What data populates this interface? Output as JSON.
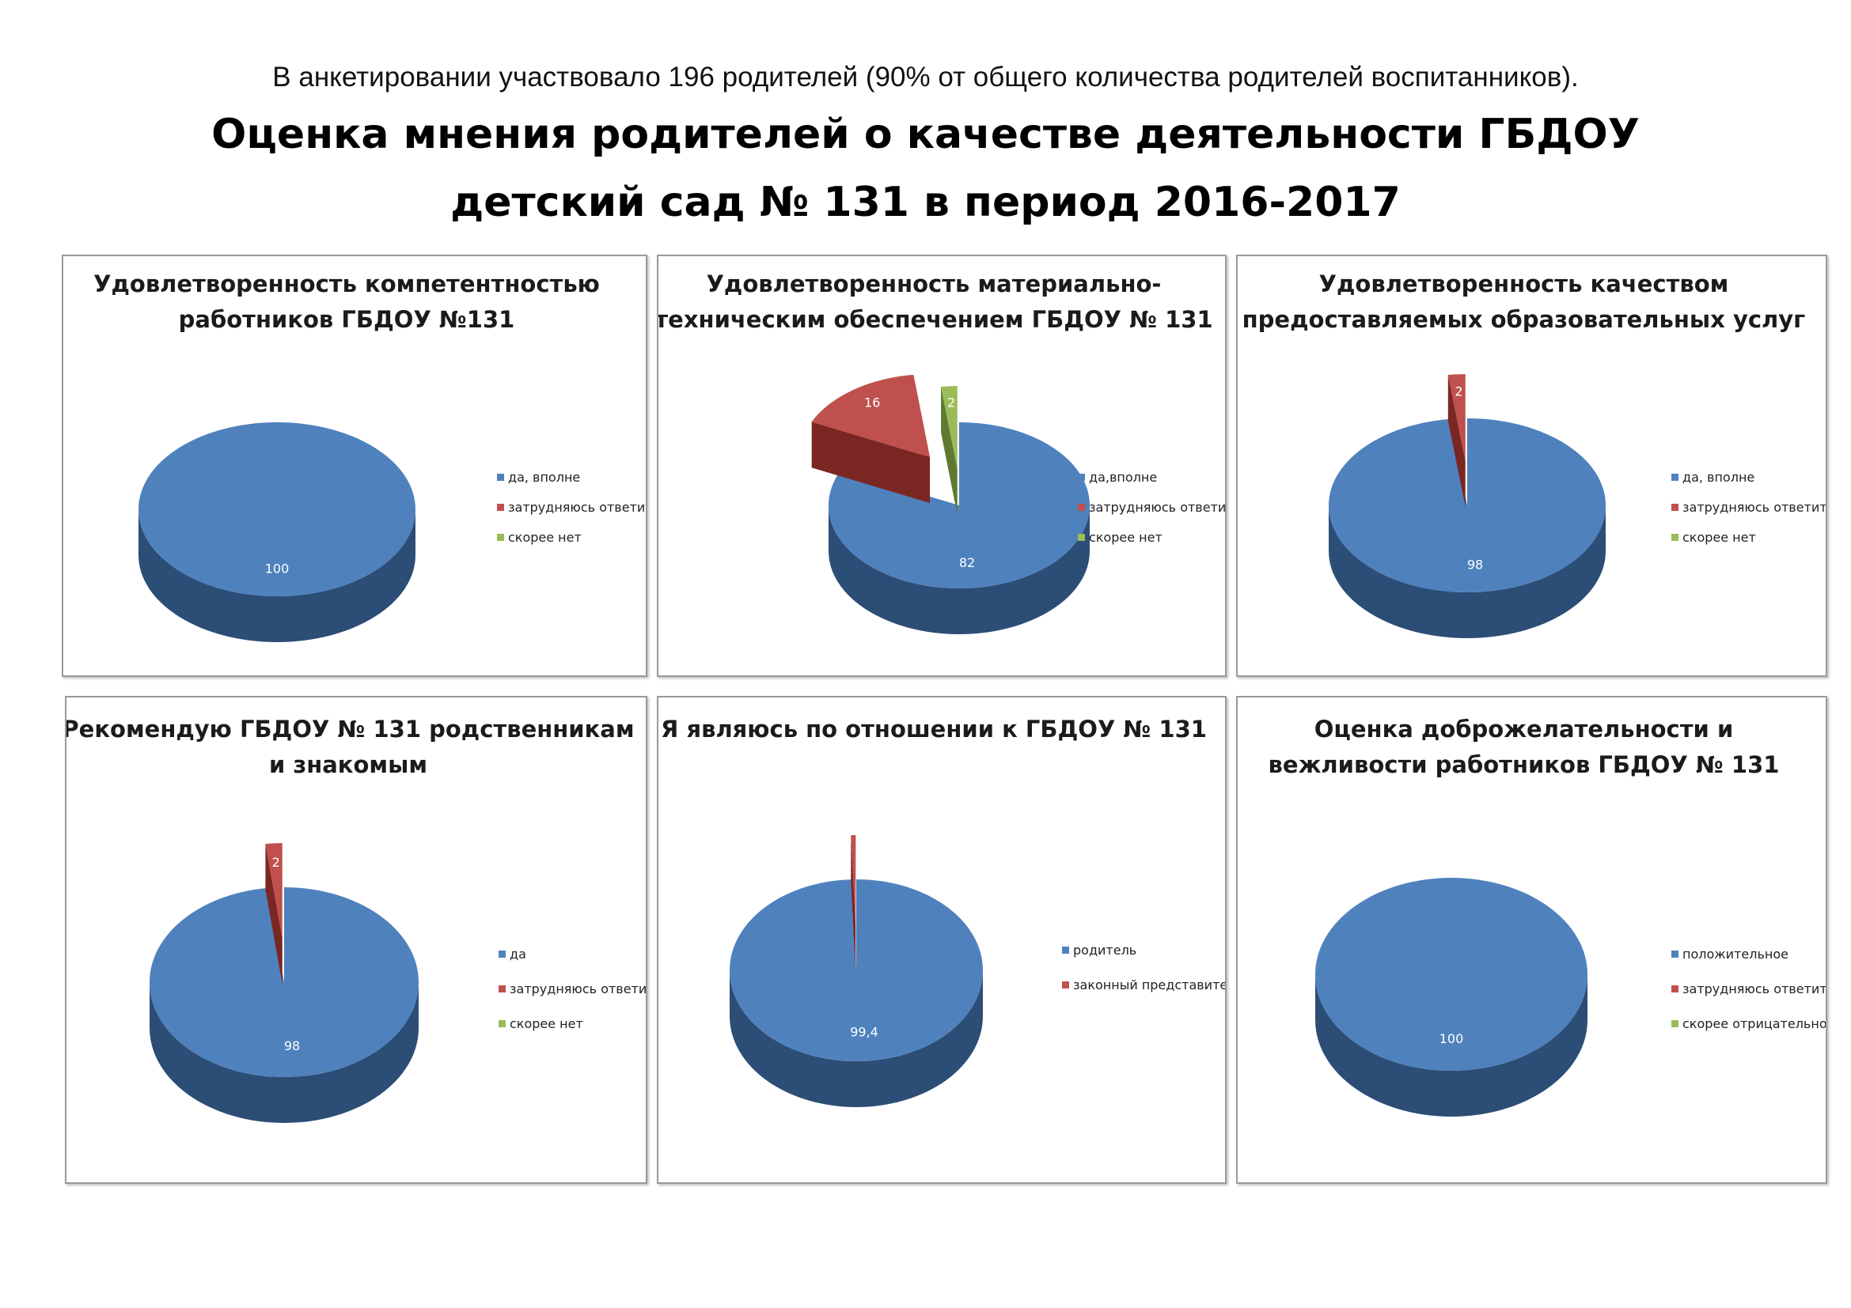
{
  "intro": "В анкетировании участвовало 196 родителей (90% от общего количества родителей воспитанников).",
  "title_line1": "Оценка мнения родителей о качестве деятельности ГБДОУ",
  "title_line2": "детский сад № 131 в период 2016-2017",
  "colors": {
    "blue": "#4f81bd",
    "red": "#c0504d",
    "green": "#9bbb59"
  },
  "chart_data": [
    {
      "type": "pie",
      "title": [
        "Удовлетворенность компетентностью",
        "работников ГБДОУ №131"
      ],
      "legend": [
        "да, вполне",
        "затрудняюсь ответить",
        "скорее нет"
      ],
      "values": [
        100,
        0,
        0
      ],
      "labels": [
        "100",
        "",
        ""
      ]
    },
    {
      "type": "pie",
      "title": [
        "Удовлетворенность материально-",
        "техническим обеспечением ГБДОУ № 131"
      ],
      "legend": [
        "да,вполне",
        "затрудняюсь ответить",
        "скорее нет"
      ],
      "values": [
        82,
        16,
        2
      ],
      "labels": [
        "82",
        "16",
        "2"
      ]
    },
    {
      "type": "pie",
      "title": [
        "Удовлетворенность качеством",
        "предоставляемых  образовательных услуг"
      ],
      "legend": [
        "да, вполне",
        "затрудняюсь ответить",
        "скорее нет"
      ],
      "values": [
        98,
        2,
        0
      ],
      "labels": [
        "98",
        "2",
        ""
      ]
    },
    {
      "type": "pie",
      "title": [
        "Рекомендую ГБДОУ № 131 родственникам",
        "и знакомым"
      ],
      "legend": [
        "да",
        "затрудняюсь ответить",
        "скорее нет"
      ],
      "values": [
        98,
        2,
        0
      ],
      "labels": [
        "98",
        "2",
        ""
      ]
    },
    {
      "type": "pie",
      "title": [
        "Я являюсь по отношении к ГБДОУ № 131"
      ],
      "legend": [
        "родитель",
        "законный представитель"
      ],
      "values": [
        99.4,
        0.6
      ],
      "labels": [
        "99,4",
        ""
      ]
    },
    {
      "type": "pie",
      "title": [
        "Оценка доброжелательности и",
        "вежливости работников ГБДОУ № 131"
      ],
      "legend": [
        "положительное",
        "затрудняюсь ответить",
        "скорее отрицательное"
      ],
      "values": [
        100,
        0,
        0
      ],
      "labels": [
        "100",
        "",
        ""
      ]
    }
  ]
}
